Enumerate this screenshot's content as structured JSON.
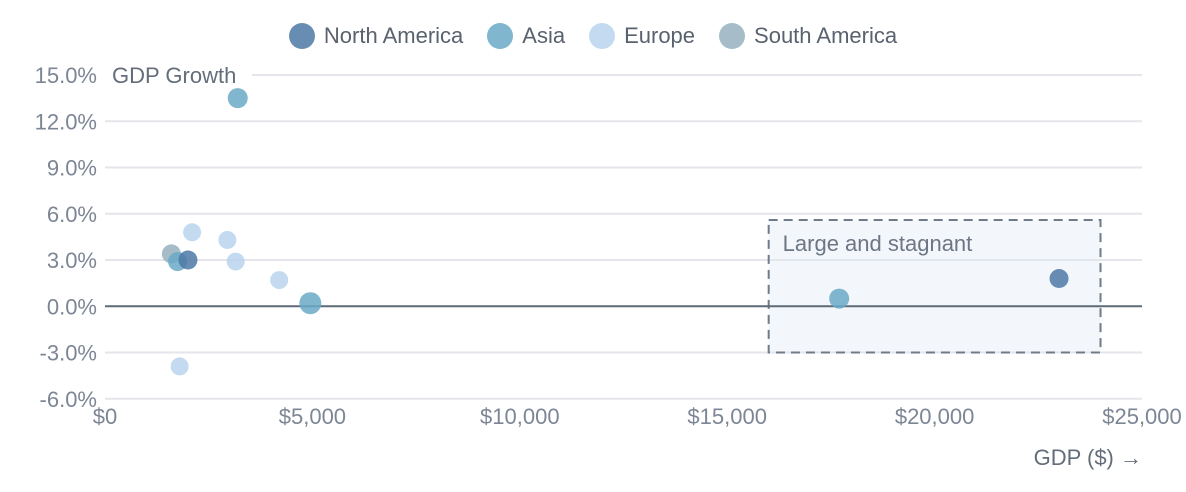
{
  "chart_data": {
    "type": "scatter",
    "title": "",
    "x_axis": {
      "label": "GDP ($) →",
      "range": [
        0,
        25000
      ],
      "ticks": [
        0,
        5000,
        10000,
        15000,
        20000,
        25000
      ],
      "tick_labels": [
        "$0",
        "$5,000",
        "$10,000",
        "$15,000",
        "$20,000",
        "$25,000"
      ]
    },
    "y_axis": {
      "label": "GDP Growth",
      "range": [
        -6,
        15
      ],
      "ticks": [
        15,
        12,
        9,
        6,
        3,
        0,
        -3,
        -6
      ],
      "tick_labels": [
        "15.0%",
        "12.0%",
        "9.0%",
        "6.0%",
        "3.0%",
        "0.0%",
        "-3.0%",
        "-6.0%"
      ]
    },
    "grid": true,
    "zero_line": true,
    "zero_line_color": "#5d6a77",
    "gridline_color": "#e5e6eb",
    "point_opacity": 0.85,
    "legend_position": "top-center",
    "legend": [
      {
        "label": "North America",
        "color": "#4e79a6"
      },
      {
        "label": "Asia",
        "color": "#6aa9c6"
      },
      {
        "label": "Europe",
        "color": "#b9d4ef"
      },
      {
        "label": "South America",
        "color": "#97b2c0"
      }
    ],
    "series": [
      {
        "name": "Europe",
        "color": "#b9d4ef",
        "points": [
          {
            "gdp": 2100,
            "growth": 4.8,
            "r": 9
          },
          {
            "gdp": 2950,
            "growth": 4.3,
            "r": 9
          },
          {
            "gdp": 3150,
            "growth": 2.9,
            "r": 9
          },
          {
            "gdp": 4200,
            "growth": 1.7,
            "r": 9
          },
          {
            "gdp": 1800,
            "growth": -3.9,
            "r": 9
          }
        ]
      },
      {
        "name": "South America",
        "color": "#97b2c0",
        "points": [
          {
            "gdp": 1600,
            "growth": 3.4,
            "r": 9.5
          }
        ]
      },
      {
        "name": "Asia",
        "color": "#6aa9c6",
        "points": [
          {
            "gdp": 3200,
            "growth": 13.5,
            "r": 10
          },
          {
            "gdp": 1750,
            "growth": 2.9,
            "r": 9.5
          },
          {
            "gdp": 4950,
            "growth": 0.2,
            "r": 11
          },
          {
            "gdp": 17700,
            "growth": 0.5,
            "r": 10
          }
        ]
      },
      {
        "name": "North America",
        "color": "#4e79a6",
        "points": [
          {
            "gdp": 2000,
            "growth": 3.0,
            "r": 9.5
          },
          {
            "gdp": 23000,
            "growth": 1.8,
            "r": 9.5
          }
        ]
      }
    ],
    "annotation": {
      "label": "Large and stagnant",
      "x_min": 16000,
      "x_max": 24000,
      "y_min": -3,
      "y_max": 5.6,
      "fill": "#dde4f0",
      "fill_opacity": 0.35,
      "border_color": "#6f7b89"
    }
  }
}
